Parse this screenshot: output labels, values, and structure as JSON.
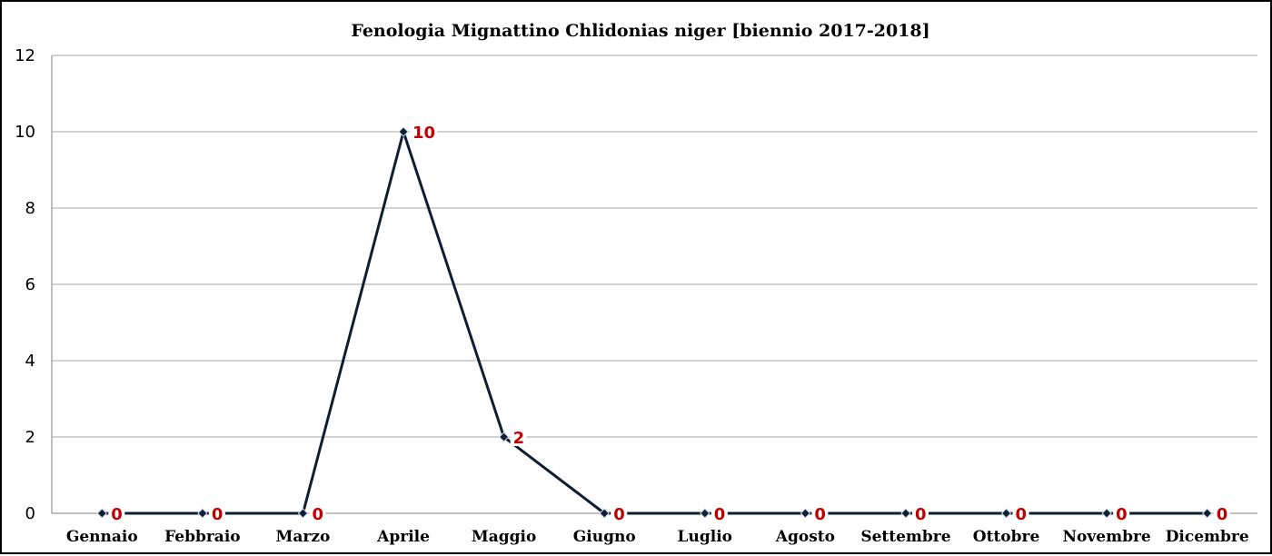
{
  "chart_data": {
    "type": "line",
    "title": "Fenologia Mignattino Chlidonias niger [biennio 2017-2018]",
    "xlabel": "",
    "ylabel": "",
    "categories": [
      "Gennaio",
      "Febbraio",
      "Marzo",
      "Aprile",
      "Maggio",
      "Giugno",
      "Luglio",
      "Agosto",
      "Settembre",
      "Ottobre",
      "Novembre",
      "Dicembre"
    ],
    "series": [
      {
        "values": [
          0,
          0,
          0,
          10,
          2,
          0,
          0,
          0,
          0,
          0,
          0,
          0
        ]
      }
    ],
    "ylim": [
      0,
      12
    ],
    "yticks": [
      "0",
      "2",
      "4",
      "6",
      "8",
      "10",
      "12"
    ],
    "grid": true,
    "legend": "none",
    "data_labels": true,
    "colors": {
      "line": "#0f1f33",
      "marker": "#0f1f33",
      "data_label": "#c00000",
      "grid": "#a6a6a6",
      "axis": "#808080"
    }
  }
}
